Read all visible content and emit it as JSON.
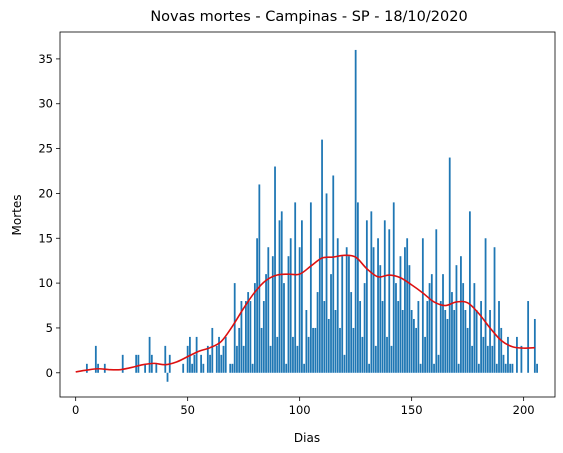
{
  "chart_data": {
    "type": "bar",
    "title": "Novas mortes - Campinas - SP - 18/10/2020",
    "xlabel": "Dias",
    "ylabel": "Mortes",
    "xlim": [
      -7,
      214
    ],
    "ylim": [
      -2.7,
      38
    ],
    "xticks": [
      0,
      50,
      100,
      150,
      200
    ],
    "yticks": [
      0,
      5,
      10,
      15,
      20,
      25,
      30,
      35
    ],
    "grid": false,
    "legend": "none",
    "bar_color": "#1f77b4",
    "line_color": "#dd1111",
    "series": [
      {
        "type": "bar",
        "x_start": 0,
        "values": [
          0,
          0,
          0,
          0,
          0,
          1,
          0,
          0,
          0,
          3,
          1,
          0,
          0,
          1,
          0,
          0,
          0,
          0,
          0,
          0,
          0,
          2,
          0,
          0,
          0,
          0,
          0,
          2,
          2,
          0,
          0,
          1,
          0,
          4,
          2,
          0,
          1,
          0,
          0,
          0,
          3,
          -1,
          2,
          0,
          0,
          0,
          0,
          0,
          1,
          0,
          3,
          4,
          1,
          2,
          4,
          0,
          2,
          1,
          0,
          3,
          2,
          5,
          0,
          3,
          4,
          2,
          3,
          4,
          0,
          1,
          1,
          10,
          3,
          5,
          8,
          3,
          8,
          9,
          8,
          1,
          10,
          15,
          21,
          5,
          8,
          11,
          14,
          3,
          13,
          23,
          4,
          17,
          18,
          10,
          1,
          13,
          15,
          4,
          19,
          3,
          14,
          17,
          1,
          7,
          4,
          19,
          5,
          5,
          9,
          15,
          26,
          8,
          20,
          6,
          11,
          22,
          7,
          15,
          5,
          13,
          2,
          14,
          13,
          9,
          5,
          36,
          19,
          8,
          4,
          10,
          17,
          1,
          18,
          14,
          3,
          15,
          12,
          8,
          17,
          4,
          16,
          3,
          19,
          10,
          8,
          13,
          7,
          14,
          15,
          12,
          7,
          6,
          5,
          8,
          1,
          15,
          4,
          8,
          10,
          11,
          1,
          16,
          2,
          8,
          11,
          7,
          6,
          24,
          9,
          7,
          12,
          1,
          13,
          10,
          7,
          5,
          18,
          3,
          10,
          7,
          1,
          8,
          4,
          15,
          3,
          7,
          3,
          14,
          1,
          8,
          5,
          2,
          1,
          4,
          1,
          1,
          0,
          4,
          0,
          3,
          0,
          0,
          8,
          0,
          0,
          6,
          1
        ]
      },
      {
        "type": "line",
        "points": [
          [
            0,
            0.1
          ],
          [
            5,
            0.3
          ],
          [
            10,
            0.45
          ],
          [
            15,
            0.35
          ],
          [
            20,
            0.35
          ],
          [
            25,
            0.6
          ],
          [
            30,
            0.9
          ],
          [
            35,
            1.05
          ],
          [
            40,
            0.9
          ],
          [
            45,
            1.2
          ],
          [
            50,
            1.8
          ],
          [
            55,
            2.4
          ],
          [
            60,
            2.8
          ],
          [
            65,
            3.5
          ],
          [
            70,
            5.2
          ],
          [
            75,
            7.2
          ],
          [
            80,
            9.0
          ],
          [
            85,
            10.3
          ],
          [
            90,
            10.9
          ],
          [
            95,
            11.0
          ],
          [
            100,
            11.0
          ],
          [
            105,
            11.9
          ],
          [
            110,
            12.8
          ],
          [
            115,
            12.9
          ],
          [
            120,
            13.1
          ],
          [
            125,
            12.9
          ],
          [
            130,
            11.6
          ],
          [
            135,
            10.7
          ],
          [
            140,
            10.9
          ],
          [
            145,
            10.6
          ],
          [
            150,
            9.8
          ],
          [
            155,
            8.9
          ],
          [
            160,
            7.9
          ],
          [
            165,
            7.5
          ],
          [
            170,
            7.9
          ],
          [
            175,
            7.8
          ],
          [
            180,
            6.6
          ],
          [
            185,
            5.0
          ],
          [
            190,
            3.6
          ],
          [
            195,
            2.9
          ],
          [
            200,
            2.75
          ],
          [
            205,
            2.8
          ]
        ]
      }
    ]
  }
}
